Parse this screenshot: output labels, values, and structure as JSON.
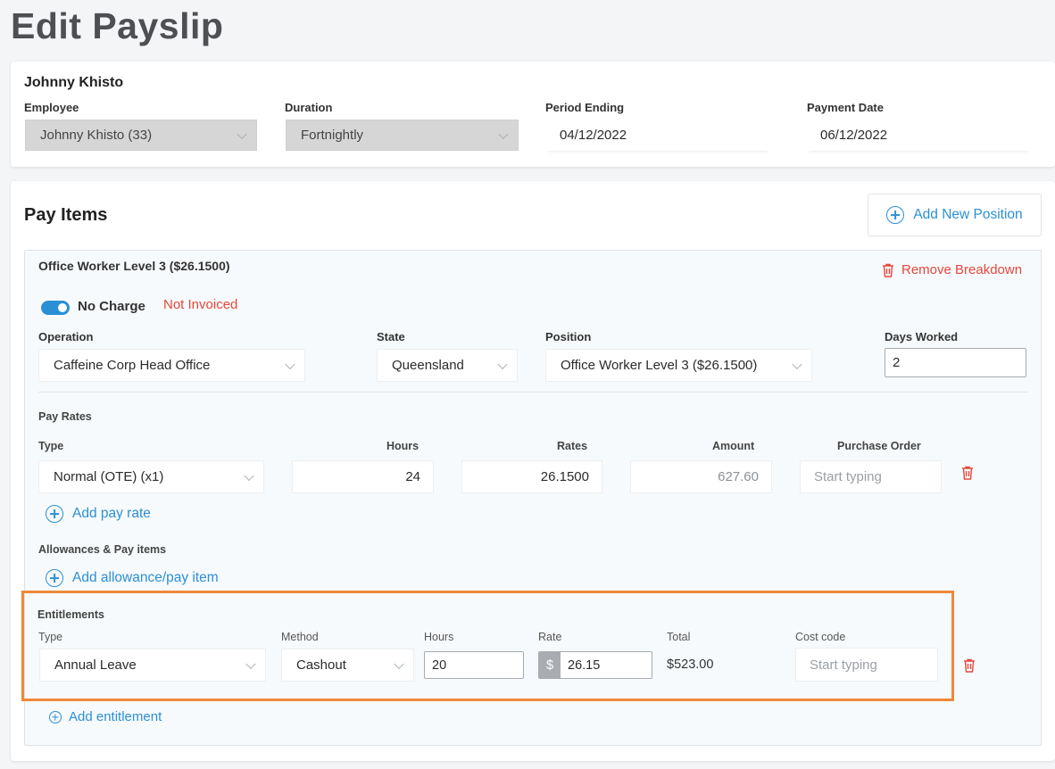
{
  "page": {
    "title": "Edit Payslip"
  },
  "employee_card": {
    "name": "Johnny Khisto",
    "employee_label": "Employee",
    "employee_value": "Johnny Khisto (33)",
    "duration_label": "Duration",
    "duration_value": "Fortnightly",
    "period_ending_label": "Period Ending",
    "period_ending_value": "04/12/2022",
    "payment_date_label": "Payment Date",
    "payment_date_value": "06/12/2022"
  },
  "pay_items": {
    "title": "Pay Items",
    "add_position_label": "Add New Position",
    "breakdown": {
      "title": "Office Worker Level 3 ($26.1500)",
      "remove_label": "Remove Breakdown",
      "no_charge_label": "No Charge",
      "no_charge_on": true,
      "invoice_status": "Not Invoiced",
      "operation_label": "Operation",
      "operation_value": "Caffeine Corp Head Office",
      "state_label": "State",
      "state_value": "Queensland",
      "position_label": "Position",
      "position_value": "Office Worker Level 3 ($26.1500)",
      "days_worked_label": "Days Worked",
      "days_worked_value": "2"
    },
    "pay_rates": {
      "section_label": "Pay Rates",
      "headers": {
        "type": "Type",
        "hours": "Hours",
        "rates": "Rates",
        "amount": "Amount",
        "purchase_order": "Purchase Order"
      },
      "rows": [
        {
          "type": "Normal (OTE) (x1)",
          "hours": "24",
          "rate": "26.1500",
          "amount": "627.60",
          "purchase_order_placeholder": "Start typing"
        }
      ],
      "add_label": "Add pay rate"
    },
    "allowances": {
      "section_label": "Allowances & Pay items",
      "add_label": "Add allowance/pay item"
    },
    "entitlements": {
      "section_label": "Entitlements",
      "highlight_color": "#f0883a",
      "headers": {
        "type": "Type",
        "method": "Method",
        "hours": "Hours",
        "rate": "Rate",
        "total": "Total",
        "cost_code": "Cost code"
      },
      "rows": [
        {
          "type": "Annual Leave",
          "method": "Cashout",
          "hours": "20",
          "rate_prefix": "$",
          "rate": "26.15",
          "total": "$523.00",
          "cost_code_placeholder": "Start typing"
        }
      ],
      "add_label": "Add entitlement"
    }
  },
  "colors": {
    "accent": "#2b8fd6",
    "danger": "#e5473b",
    "highlight": "#f0883a"
  }
}
